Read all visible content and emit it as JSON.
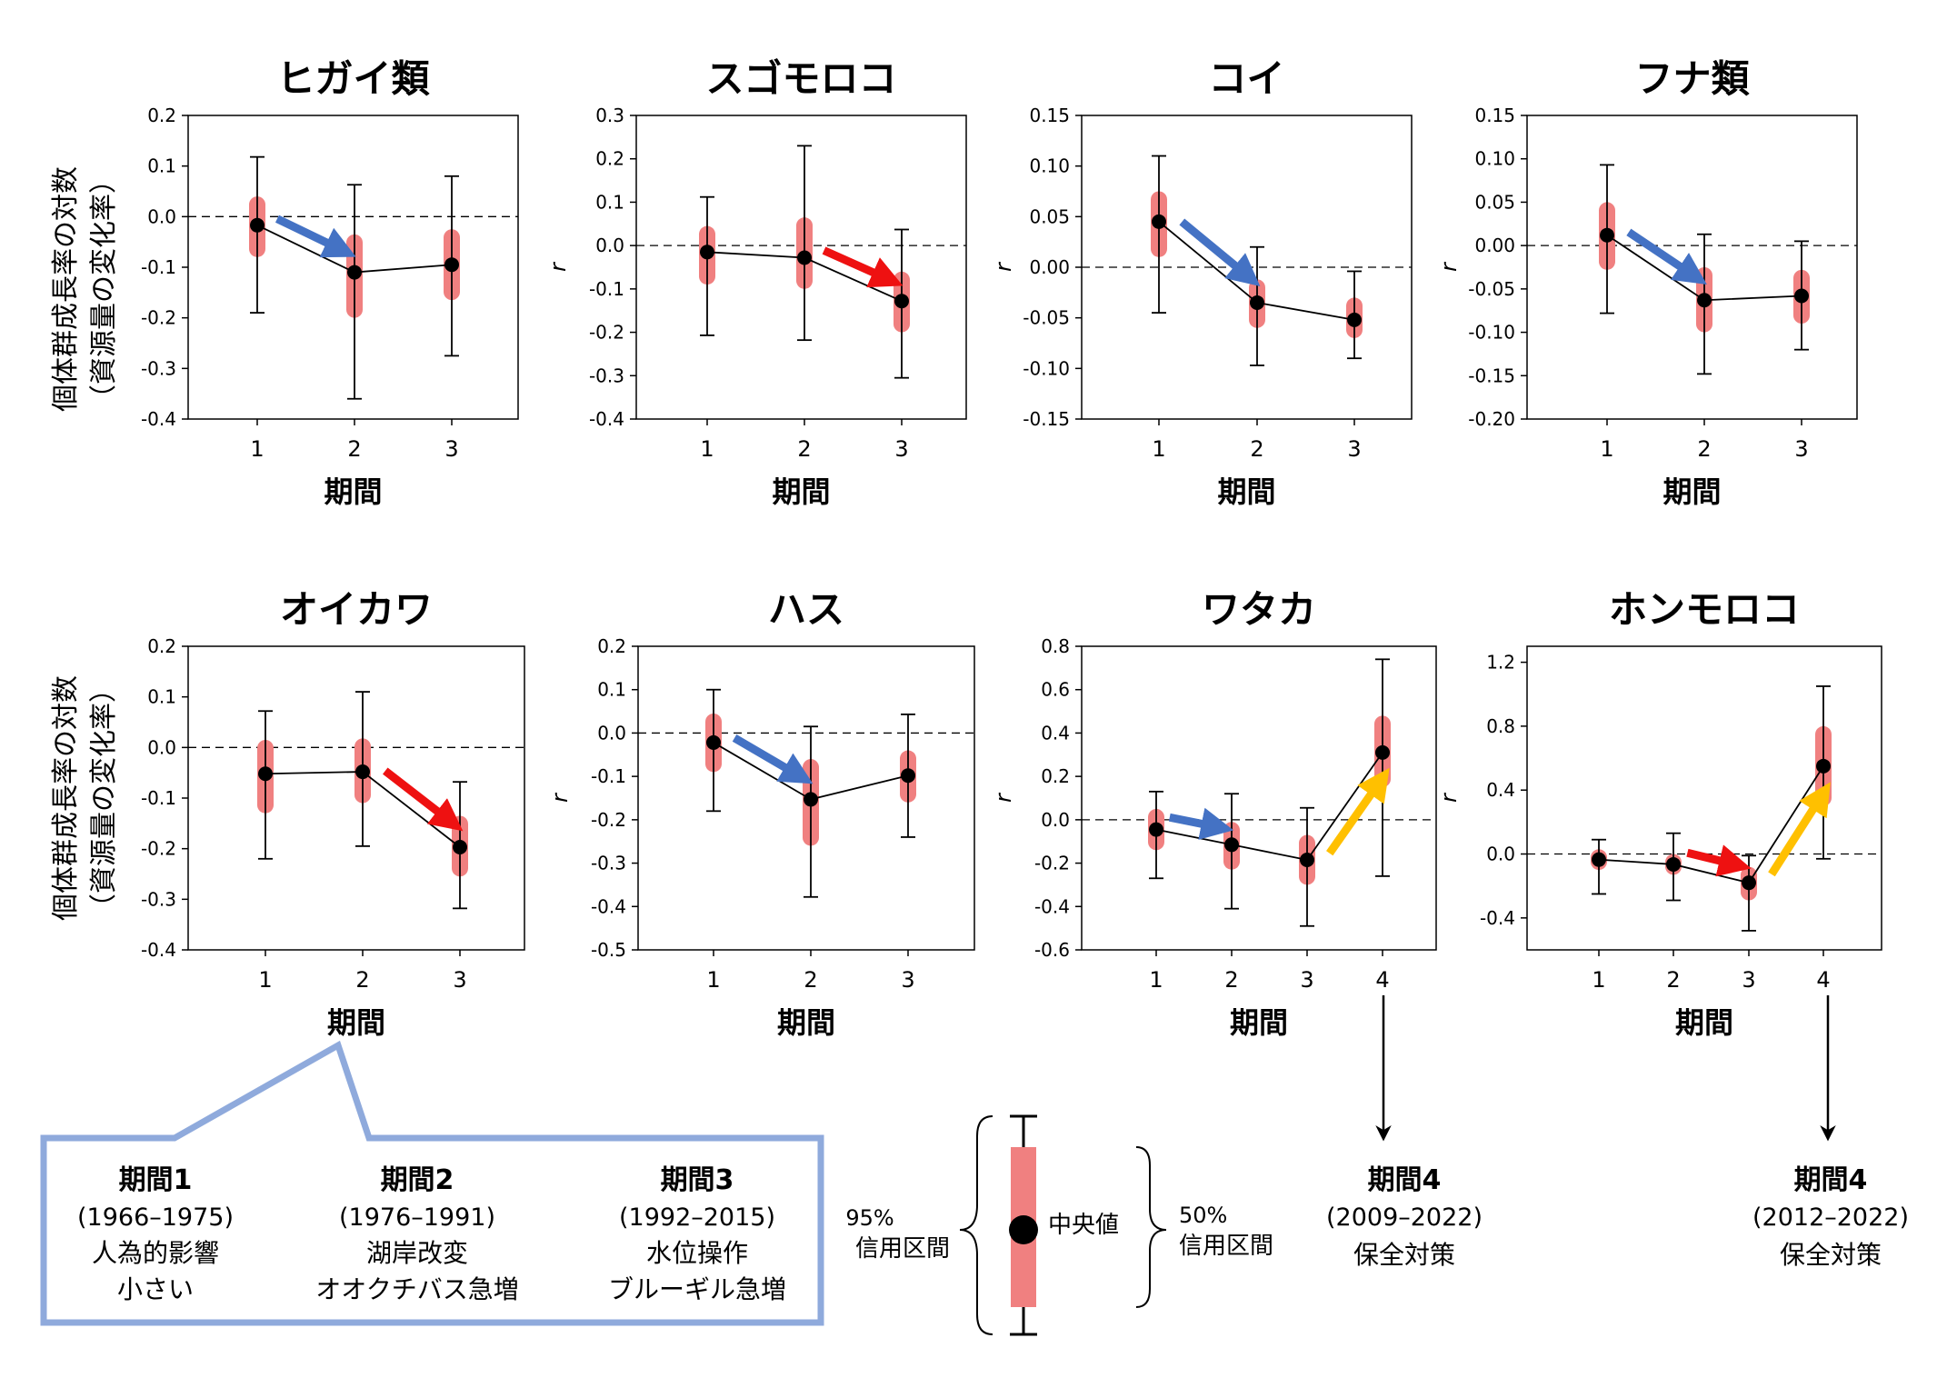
{
  "colors": {
    "pink": "#f08080",
    "blue": "#4472c4",
    "red": "#ee1111",
    "yellow": "#ffc000",
    "box": "#8faadc",
    "ink": "#000000"
  },
  "common": {
    "xlabel": "期間",
    "ylabel_line1": "個体群成長率の対数",
    "ylabel_line2": "（資源量の変化率）",
    "ylabel_r": "r"
  },
  "chart_data": [
    {
      "type": "scatter",
      "title": "ヒガイ類",
      "ylabel": "個体群成長率の対数（資源量の変化率）",
      "xlabel": "期間",
      "ylim": [
        -0.4,
        0.2
      ],
      "yticks": [
        0.2,
        0.1,
        0.0,
        -0.1,
        -0.2,
        -0.3,
        -0.4
      ],
      "ytick_labels": [
        "0.2",
        "0.1",
        "0.0",
        "-0.1",
        "-0.2",
        "-0.3",
        "-0.4"
      ],
      "categories": [
        "1",
        "2",
        "3"
      ],
      "median": [
        -0.017,
        -0.11,
        -0.095
      ],
      "ci50": [
        [
          -0.08,
          0.04
        ],
        [
          -0.2,
          -0.035
        ],
        [
          -0.165,
          -0.025
        ]
      ],
      "ci95": [
        [
          -0.19,
          0.118
        ],
        [
          -0.36,
          0.063
        ],
        [
          -0.275,
          0.08
        ]
      ],
      "arrows": [
        {
          "from": 1,
          "to": 2,
          "color": "blue"
        }
      ]
    },
    {
      "type": "scatter",
      "title": "スゴモロコ",
      "ylabel": "r",
      "xlabel": "期間",
      "ylim": [
        -0.4,
        0.3
      ],
      "yticks": [
        0.3,
        0.2,
        0.1,
        0.0,
        -0.1,
        -0.2,
        -0.3,
        -0.4
      ],
      "ytick_labels": [
        "0.3",
        "0.2",
        "0.1",
        "0.0",
        "-0.1",
        "-0.2",
        "-0.3",
        "-0.4"
      ],
      "categories": [
        "1",
        "2",
        "3"
      ],
      "median": [
        -0.015,
        -0.028,
        -0.128
      ],
      "ci50": [
        [
          -0.09,
          0.045
        ],
        [
          -0.1,
          0.065
        ],
        [
          -0.2,
          -0.06
        ]
      ],
      "ci95": [
        [
          -0.207,
          0.112
        ],
        [
          -0.218,
          0.23
        ],
        [
          -0.305,
          0.037
        ]
      ],
      "arrows": [
        {
          "from": 2,
          "to": 3,
          "color": "red"
        }
      ]
    },
    {
      "type": "scatter",
      "title": "コイ",
      "ylabel": "r",
      "xlabel": "期間",
      "ylim": [
        -0.15,
        0.15
      ],
      "yticks": [
        0.15,
        0.1,
        0.05,
        0.0,
        -0.05,
        -0.1,
        -0.15
      ],
      "ytick_labels": [
        "0.15",
        "0.10",
        "0.05",
        "0.00",
        "-0.05",
        "-0.10",
        "-0.15"
      ],
      "categories": [
        "1",
        "2",
        "3"
      ],
      "median": [
        0.045,
        -0.035,
        -0.052
      ],
      "ci50": [
        [
          0.01,
          0.075
        ],
        [
          -0.06,
          -0.012
        ],
        [
          -0.07,
          -0.03
        ]
      ],
      "ci95": [
        [
          -0.045,
          0.11
        ],
        [
          -0.097,
          0.02
        ],
        [
          -0.09,
          -0.004
        ]
      ],
      "arrows": [
        {
          "from": 1,
          "to": 2,
          "color": "blue"
        }
      ]
    },
    {
      "type": "scatter",
      "title": "フナ類",
      "ylabel": "r",
      "xlabel": "期間",
      "ylim": [
        -0.2,
        0.15
      ],
      "yticks": [
        0.15,
        0.1,
        0.05,
        0.0,
        -0.05,
        -0.1,
        -0.15,
        -0.2
      ],
      "ytick_labels": [
        "0.15",
        "0.10",
        "0.05",
        "0.00",
        "-0.05",
        "-0.10",
        "-0.15",
        "-0.20"
      ],
      "categories": [
        "1",
        "2",
        "3"
      ],
      "median": [
        0.012,
        -0.063,
        -0.058
      ],
      "ci50": [
        [
          -0.028,
          0.05
        ],
        [
          -0.1,
          -0.025
        ],
        [
          -0.09,
          -0.028
        ]
      ],
      "ci95": [
        [
          -0.078,
          0.093
        ],
        [
          -0.148,
          0.013
        ],
        [
          -0.12,
          0.005
        ]
      ],
      "arrows": [
        {
          "from": 1,
          "to": 2,
          "color": "blue"
        }
      ]
    },
    {
      "type": "scatter",
      "title": "オイカワ",
      "ylabel": "個体群成長率の対数（資源量の変化率）",
      "xlabel": "期間",
      "ylim": [
        -0.4,
        0.2
      ],
      "yticks": [
        0.2,
        0.1,
        0.0,
        -0.1,
        -0.2,
        -0.3,
        -0.4
      ],
      "ytick_labels": [
        "0.2",
        "0.1",
        "0.0",
        "-0.1",
        "-0.2",
        "-0.3",
        "-0.4"
      ],
      "categories": [
        "1",
        "2",
        "3"
      ],
      "median": [
        -0.052,
        -0.048,
        -0.197
      ],
      "ci50": [
        [
          -0.13,
          0.015
        ],
        [
          -0.11,
          0.018
        ],
        [
          -0.255,
          -0.135
        ]
      ],
      "ci95": [
        [
          -0.22,
          0.072
        ],
        [
          -0.195,
          0.11
        ],
        [
          -0.318,
          -0.068
        ]
      ],
      "arrows": [
        {
          "from": 2,
          "to": 3,
          "color": "red"
        }
      ]
    },
    {
      "type": "scatter",
      "title": "ハス",
      "ylabel": "r",
      "xlabel": "期間",
      "ylim": [
        -0.5,
        0.2
      ],
      "yticks": [
        0.2,
        0.1,
        0.0,
        -0.1,
        -0.2,
        -0.3,
        -0.4,
        -0.5
      ],
      "ytick_labels": [
        "0.2",
        "0.1",
        "0.0",
        "-0.1",
        "-0.2",
        "-0.3",
        "-0.4",
        "-0.5"
      ],
      "categories": [
        "1",
        "2",
        "3"
      ],
      "median": [
        -0.022,
        -0.153,
        -0.098
      ],
      "ci50": [
        [
          -0.09,
          0.045
        ],
        [
          -0.26,
          -0.06
        ],
        [
          -0.16,
          -0.04
        ]
      ],
      "ci95": [
        [
          -0.18,
          0.1
        ],
        [
          -0.378,
          0.015
        ],
        [
          -0.24,
          0.043
        ]
      ],
      "arrows": [
        {
          "from": 1,
          "to": 2,
          "color": "blue"
        }
      ]
    },
    {
      "type": "scatter",
      "title": "ワタカ",
      "ylabel": "r",
      "xlabel": "期間",
      "ylim": [
        -0.6,
        0.8
      ],
      "yticks": [
        0.8,
        0.6,
        0.4,
        0.2,
        0.0,
        -0.2,
        -0.4,
        -0.6
      ],
      "ytick_labels": [
        "0.8",
        "0.6",
        "0.4",
        "0.2",
        "0.0",
        "-0.2",
        "-0.4",
        "-0.6"
      ],
      "categories": [
        "1",
        "2",
        "3",
        "4"
      ],
      "median": [
        -0.045,
        -0.115,
        -0.185,
        0.31
      ],
      "ci50": [
        [
          -0.14,
          0.05
        ],
        [
          -0.23,
          -0.01
        ],
        [
          -0.3,
          -0.07
        ],
        [
          0.15,
          0.48
        ]
      ],
      "ci95": [
        [
          -0.27,
          0.13
        ],
        [
          -0.41,
          0.12
        ],
        [
          -0.49,
          0.055
        ],
        [
          -0.26,
          0.74
        ]
      ],
      "arrows": [
        {
          "from": 1,
          "to": 2,
          "color": "blue"
        },
        {
          "from": 3,
          "to": 4,
          "color": "yellow"
        }
      ]
    },
    {
      "type": "scatter",
      "title": "ホンモロコ",
      "ylabel": "r",
      "xlabel": "期間",
      "ylim": [
        -0.6,
        1.3
      ],
      "yticks": [
        1.2,
        0.8,
        0.4,
        0.0,
        -0.4
      ],
      "ytick_labels": [
        "1.2",
        "0.8",
        "0.4",
        "0.0",
        "-0.4"
      ],
      "categories": [
        "1",
        "2",
        "3",
        "4"
      ],
      "median": [
        -0.035,
        -0.065,
        -0.18,
        0.55
      ],
      "ci50": [
        [
          -0.1,
          0.03
        ],
        [
          -0.13,
          0.0
        ],
        [
          -0.29,
          -0.08
        ],
        [
          0.3,
          0.8
        ]
      ],
      "ci95": [
        [
          -0.25,
          0.09
        ],
        [
          -0.29,
          0.13
        ],
        [
          -0.48,
          -0.01
        ],
        [
          -0.03,
          1.05
        ]
      ],
      "arrows": [
        {
          "from": 2,
          "to": 3,
          "color": "red"
        },
        {
          "from": 3,
          "to": 4,
          "color": "yellow"
        }
      ]
    }
  ],
  "periods_box": {
    "p1": {
      "title": "期間1",
      "years": "(1966–1975)",
      "line1": "人為的影響",
      "line2": "小さい"
    },
    "p2": {
      "title": "期間2",
      "years": "(1976–1991)",
      "line1": "湖岸改変",
      "line2": "オオクチバス急増"
    },
    "p3": {
      "title": "期間3",
      "years": "(1992–2015)",
      "line1": "水位操作",
      "line2": "ブルーギル急増"
    }
  },
  "period4": [
    {
      "title": "期間4",
      "years": "(2009–2022)",
      "line1": "保全対策"
    },
    {
      "title": "期間4",
      "years": "(2012–2022)",
      "line1": "保全対策"
    }
  ],
  "legend": {
    "ci95_line1": "95%",
    "ci95_line2": "信用区間",
    "median": "中央値",
    "ci50_line1": "50%",
    "ci50_line2": "信用区間"
  }
}
